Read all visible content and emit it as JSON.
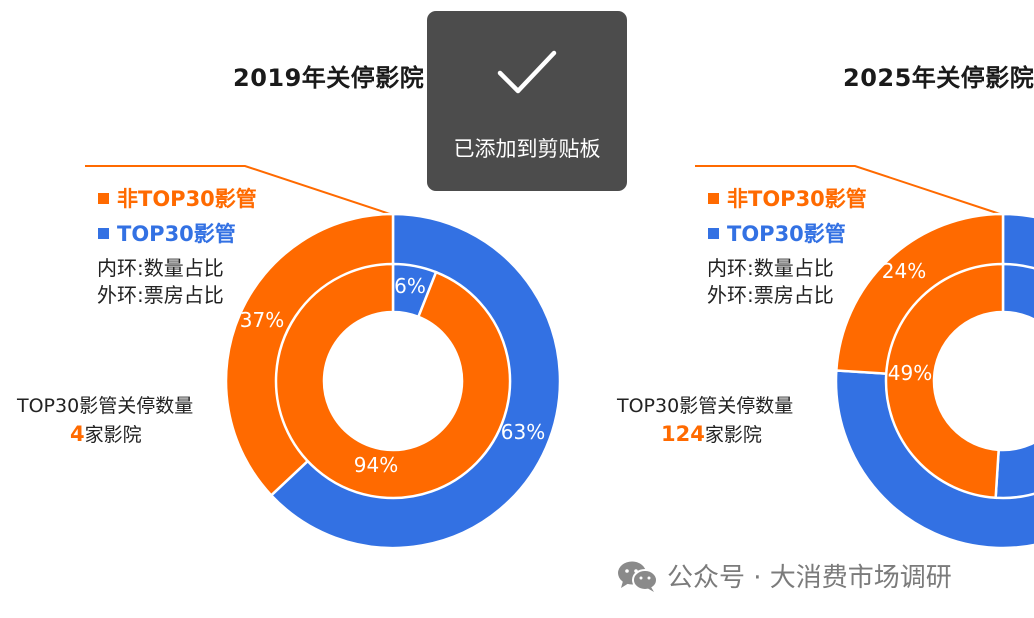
{
  "colors": {
    "orange": "#ff6a00",
    "blue": "#3371e3",
    "ring_gap": "#ffffff"
  },
  "chart_data": [
    {
      "type": "pie",
      "title": "2019年关停影院",
      "legend": [
        "非TOP30影管",
        "TOP30影管"
      ],
      "notes": [
        "内环:数量占比",
        "外环:票房占比"
      ],
      "side_label": {
        "text": "TOP30影管关停数量",
        "count": "4",
        "suffix": "家影院"
      },
      "series": [
        {
          "name": "外环:票房占比",
          "categories": [
            "TOP30影管",
            "非TOP30影管"
          ],
          "values": [
            63,
            37
          ],
          "labels": [
            "63%",
            "37%"
          ]
        },
        {
          "name": "内环:数量占比",
          "categories": [
            "TOP30影管",
            "非TOP30影管"
          ],
          "values": [
            6,
            94
          ],
          "labels": [
            "6%",
            "94%"
          ]
        }
      ]
    },
    {
      "type": "pie",
      "title": "2025年关停影院",
      "legend": [
        "非TOP30影管",
        "TOP30影管"
      ],
      "notes": [
        "内环:数量占比",
        "外环:票房占比"
      ],
      "side_label": {
        "text": "TOP30影管关停数量",
        "count": "124",
        "suffix": "家影院"
      },
      "series": [
        {
          "name": "外环:票房占比",
          "categories": [
            "TOP30影管",
            "非TOP30影管"
          ],
          "values": [
            76,
            24
          ],
          "labels": [
            "",
            "24%"
          ]
        },
        {
          "name": "内环:数量占比",
          "categories": [
            "TOP30影管",
            "非TOP30影管"
          ],
          "values": [
            51,
            49
          ],
          "labels": [
            "",
            "49%"
          ]
        }
      ]
    }
  ],
  "toast": {
    "icon": "checkmark-icon",
    "text": "已添加到剪贴板"
  },
  "watermark": {
    "icon": "wechat-icon",
    "text": "公众号 · 大消费市场调研"
  }
}
